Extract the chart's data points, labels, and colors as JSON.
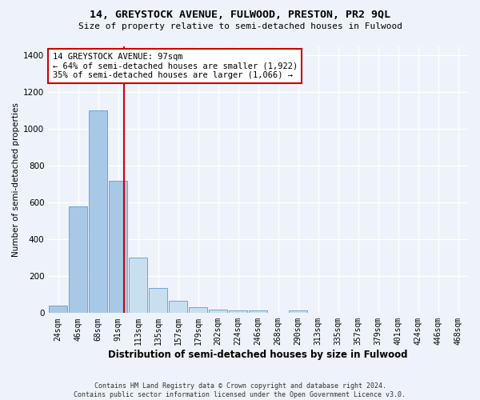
{
  "title": "14, GREYSTOCK AVENUE, FULWOOD, PRESTON, PR2 9QL",
  "subtitle": "Size of property relative to semi-detached houses in Fulwood",
  "xlabel": "Distribution of semi-detached houses by size in Fulwood",
  "ylabel": "Number of semi-detached properties",
  "footnote1": "Contains HM Land Registry data © Crown copyright and database right 2024.",
  "footnote2": "Contains public sector information licensed under the Open Government Licence v3.0.",
  "property_size": 97,
  "annotation_line1": "14 GREYSTOCK AVENUE: 97sqm",
  "annotation_line2": "← 64% of semi-detached houses are smaller (1,922)",
  "annotation_line3": "35% of semi-detached houses are larger (1,066) →",
  "red_line_color": "#cc0000",
  "background_color": "#eef2fa",
  "grid_color": "#ffffff",
  "categories": [
    "24sqm",
    "46sqm",
    "68sqm",
    "91sqm",
    "113sqm",
    "135sqm",
    "157sqm",
    "179sqm",
    "202sqm",
    "224sqm",
    "246sqm",
    "268sqm",
    "290sqm",
    "313sqm",
    "335sqm",
    "357sqm",
    "379sqm",
    "401sqm",
    "424sqm",
    "446sqm",
    "468sqm"
  ],
  "bin_starts": [
    13,
    35,
    57,
    79,
    101,
    123,
    145,
    167,
    189,
    211,
    233,
    255,
    277,
    299,
    321,
    343,
    365,
    387,
    409,
    431,
    453
  ],
  "bin_width": 22,
  "values": [
    40,
    580,
    1100,
    720,
    300,
    135,
    65,
    30,
    20,
    15,
    15,
    0,
    15,
    0,
    0,
    0,
    0,
    0,
    0,
    0,
    0
  ],
  "bar_color_left": "#a8c8e8",
  "bar_color_right": "#c8dff0",
  "bar_edge_color": "#6699cc",
  "ylim": [
    0,
    1450
  ],
  "yticks": [
    0,
    200,
    400,
    600,
    800,
    1000,
    1200,
    1400
  ],
  "annotation_box_color": "#ffffff",
  "annotation_box_edge": "#cc0000",
  "title_fontsize": 9.5,
  "subtitle_fontsize": 8,
  "ylabel_fontsize": 7.5,
  "xlabel_fontsize": 8.5,
  "tick_fontsize": 7,
  "annot_fontsize": 7.5,
  "footnote_fontsize": 6
}
